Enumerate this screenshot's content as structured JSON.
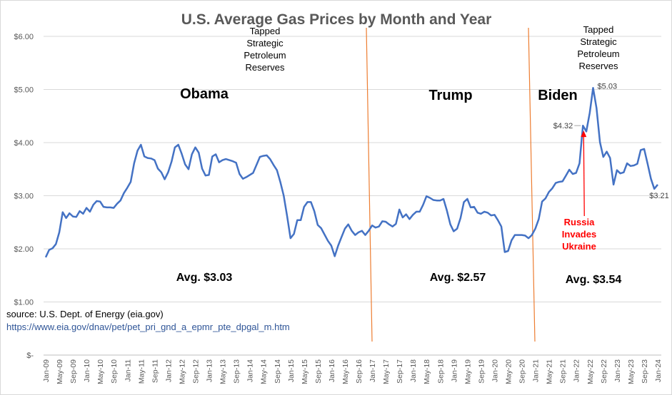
{
  "chart_data": {
    "type": "line",
    "title": "U.S. Average Gas Prices by Month and Year",
    "xlabel": "",
    "ylabel": "",
    "ylim": [
      0,
      6
    ],
    "y_ticks": [
      "$-",
      "$1.00",
      "$2.00",
      "$3.00",
      "$4.00",
      "$5.00",
      "$6.00"
    ],
    "x_tick_labels": [
      "Jan-09",
      "May-09",
      "Sep-09",
      "Jan-10",
      "May-10",
      "Sep-10",
      "Jan-11",
      "May-11",
      "Sep-11",
      "Jan-12",
      "May-12",
      "Sep-12",
      "Jan-13",
      "May-13",
      "Sep-13",
      "Jan-14",
      "May-14",
      "Sep-14",
      "Jan-15",
      "May-15",
      "Sep-15",
      "Jan-16",
      "May-16",
      "Sep-16",
      "Jan-17",
      "May-17",
      "Sep-17",
      "Jan-18",
      "May-18",
      "Sep-18",
      "Jan-19",
      "May-19",
      "Sep-19",
      "Jan-20",
      "May-20",
      "Sep-20",
      "Jan-21",
      "May-21",
      "Sep-21",
      "Jan-22",
      "May-22",
      "Sep-22",
      "Jan-23",
      "May-23",
      "Sep-23",
      "Jan-24"
    ],
    "x_start": "Jan-09",
    "x_end": "Jan-24",
    "grid": true,
    "line_color": "#4472c4",
    "series": [
      {
        "values": [
          1.84,
          1.98,
          2.01,
          2.09,
          2.31,
          2.69,
          2.58,
          2.67,
          2.61,
          2.6,
          2.71,
          2.66,
          2.77,
          2.7,
          2.83,
          2.9,
          2.89,
          2.79,
          2.78,
          2.78,
          2.77,
          2.85,
          2.91,
          3.05,
          3.15,
          3.26,
          3.61,
          3.85,
          3.96,
          3.74,
          3.71,
          3.7,
          3.67,
          3.51,
          3.44,
          3.31,
          3.44,
          3.64,
          3.91,
          3.96,
          3.79,
          3.59,
          3.5,
          3.78,
          3.91,
          3.81,
          3.51,
          3.38,
          3.39,
          3.74,
          3.78,
          3.63,
          3.67,
          3.69,
          3.67,
          3.65,
          3.62,
          3.41,
          3.32,
          3.35,
          3.39,
          3.43,
          3.58,
          3.73,
          3.75,
          3.76,
          3.69,
          3.58,
          3.48,
          3.26,
          3.0,
          2.62,
          2.2,
          2.28,
          2.54,
          2.54,
          2.79,
          2.88,
          2.88,
          2.71,
          2.45,
          2.39,
          2.27,
          2.15,
          2.06,
          1.86,
          2.06,
          2.22,
          2.38,
          2.46,
          2.34,
          2.26,
          2.31,
          2.34,
          2.26,
          2.34,
          2.44,
          2.4,
          2.42,
          2.52,
          2.51,
          2.46,
          2.42,
          2.47,
          2.74,
          2.59,
          2.65,
          2.56,
          2.64,
          2.7,
          2.7,
          2.83,
          2.99,
          2.96,
          2.92,
          2.91,
          2.91,
          2.94,
          2.72,
          2.46,
          2.33,
          2.38,
          2.58,
          2.88,
          2.94,
          2.78,
          2.79,
          2.68,
          2.66,
          2.7,
          2.68,
          2.63,
          2.64,
          2.54,
          2.42,
          1.94,
          1.96,
          2.16,
          2.26,
          2.26,
          2.26,
          2.25,
          2.2,
          2.26,
          2.38,
          2.56,
          2.89,
          2.95,
          3.07,
          3.14,
          3.24,
          3.26,
          3.27,
          3.38,
          3.49,
          3.41,
          3.43,
          3.61,
          4.32,
          4.21,
          4.56,
          5.03,
          4.65,
          4.01,
          3.73,
          3.83,
          3.71,
          3.21,
          3.48,
          3.42,
          3.44,
          3.61,
          3.56,
          3.57,
          3.6,
          3.86,
          3.88,
          3.61,
          3.32,
          3.13,
          3.21
        ]
      }
    ],
    "data_labels": [
      {
        "x": "Mar-22",
        "text": "$4.32"
      },
      {
        "x": "Jun-22",
        "text": "$5.03"
      },
      {
        "x": "Jan-24",
        "text": "$3.21"
      }
    ],
    "divider_lines": {
      "color": "#ed7d31",
      "at": [
        "Jan-17",
        "Jan-21"
      ]
    }
  },
  "annotations": {
    "obama": "Obama",
    "trump": "Trump",
    "biden": "Biden",
    "obama_avg": "Avg. $3.03",
    "trump_avg": "Avg. $2.57",
    "biden_avg": "Avg. $3.54",
    "spr_1": [
      "Tapped",
      "Strategic",
      "Petroleum",
      "Reserves"
    ],
    "spr_2": [
      "Tapped",
      "Strategic",
      "Petroleum",
      "Reserves"
    ],
    "russia": [
      "Russia",
      "Invades",
      "Ukraine"
    ],
    "russia_color": "#ff0000"
  },
  "source": {
    "text": "source: U.S. Dept. of Energy (eia.gov)",
    "link": "https://www.eia.gov/dnav/pet/pet_pri_gnd_a_epmr_pte_dpgal_m.htm"
  }
}
